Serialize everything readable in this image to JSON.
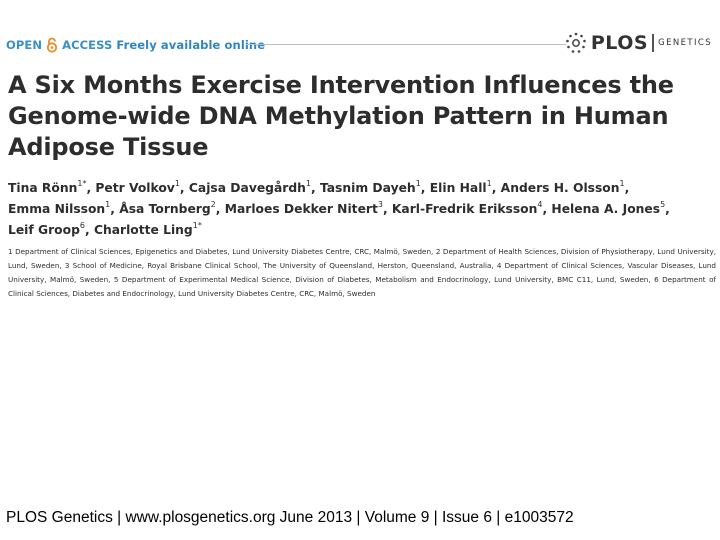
{
  "banner": {
    "open_text": "OPEN",
    "access_text": "ACCESS",
    "freely_text": "Freely available online",
    "plos_text": "PLOS",
    "journal_text": "GENETICS"
  },
  "title": "A Six Months Exercise Intervention Influences the Genome-wide DNA Methylation Pattern in Human Adipose Tissue",
  "authors": [
    {
      "name": "Tina Rönn",
      "sup": "1*"
    },
    {
      "name": "Petr Volkov",
      "sup": "1"
    },
    {
      "name": "Cajsa Davegårdh",
      "sup": "1"
    },
    {
      "name": "Tasnim Dayeh",
      "sup": "1"
    },
    {
      "name": "Elin Hall",
      "sup": "1"
    },
    {
      "name": "Anders H. Olsson",
      "sup": "1"
    },
    {
      "name": "Emma Nilsson",
      "sup": "1"
    },
    {
      "name": "Åsa Tornberg",
      "sup": "2"
    },
    {
      "name": "Marloes Dekker Nitert",
      "sup": "3"
    },
    {
      "name": "Karl-Fredrik Eriksson",
      "sup": "4"
    },
    {
      "name": "Helena A. Jones",
      "sup": "5"
    },
    {
      "name": "Leif Groop",
      "sup": "6"
    },
    {
      "name": "Charlotte Ling",
      "sup": "1*"
    }
  ],
  "affiliations": "1 Department of Clinical Sciences, Epigenetics and Diabetes, Lund University Diabetes Centre, CRC, Malmö, Sweden, 2 Department of Health Sciences, Division of Physiotherapy, Lund University, Lund, Sweden, 3 School of Medicine, Royal Brisbane Clinical School, The University of Queensland, Herston, Queensland, Australia, 4 Department of Clinical Sciences, Vascular Diseases, Lund University, Malmö, Sweden, 5 Department of Experimental Medical Science, Division of Diabetes, Metabolism and Endocrinology, Lund University, BMC C11, Lund, Sweden, 6 Department of Clinical Sciences, Diabetes and Endocrinology, Lund University Diabetes Centre, CRC, Malmö, Sweden",
  "footer": "PLOS Genetics | www.plosgenetics.org June 2013 | Volume 9 | Issue 6 | e1003572",
  "colors": {
    "open_access_blue": "#3a8fc6",
    "title_text": "#2d2d2d"
  },
  "icons": [
    "open-access-lock-icon",
    "plos-logo-icon"
  ]
}
